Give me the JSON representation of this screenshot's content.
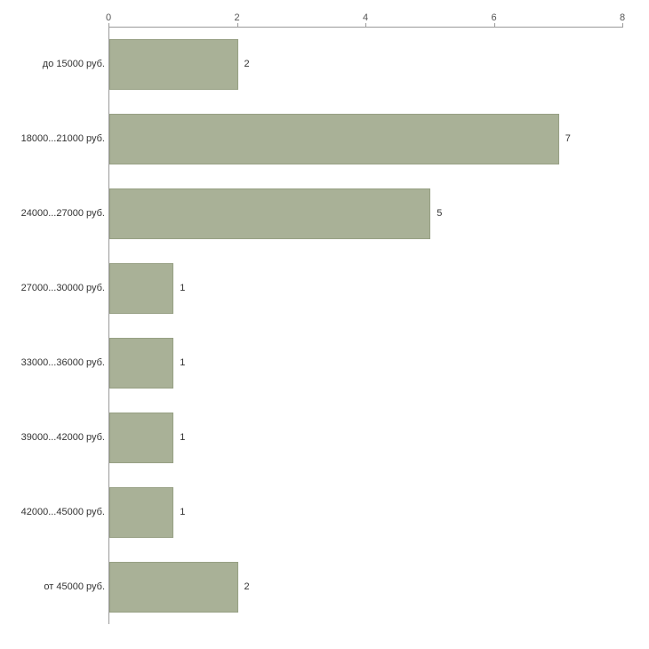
{
  "chart_data": {
    "type": "bar",
    "orientation": "horizontal",
    "title": "",
    "xlabel": "",
    "ylabel": "",
    "categories": [
      "до 15000 руб.",
      "18000...21000 руб.",
      "24000...27000 руб.",
      "27000...30000 руб.",
      "33000...36000 руб.",
      "39000...42000 руб.",
      "42000...45000 руб.",
      "от 45000 руб."
    ],
    "values": [
      2,
      7,
      5,
      1,
      1,
      1,
      1,
      2
    ],
    "xlim": [
      0,
      8
    ],
    "x_ticks": [
      0,
      2,
      4,
      6,
      8
    ],
    "grid": false,
    "legend_position": "none",
    "bar_color": "#a9b197",
    "bar_border_color": "#97a084",
    "axis_color": "#9a9a9a",
    "tick_label_color": "#555555",
    "label_color": "#333333"
  }
}
